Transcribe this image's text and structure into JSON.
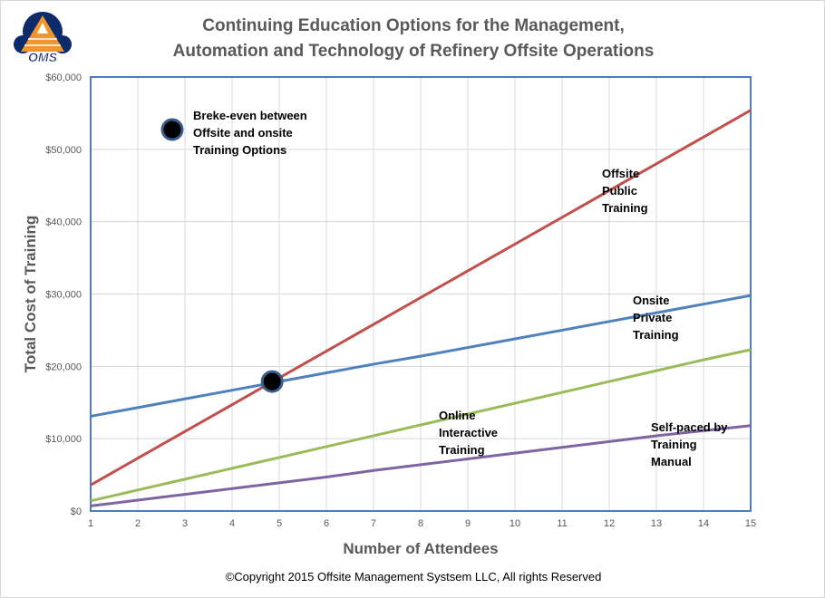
{
  "logo": {
    "text": "OMS"
  },
  "chart_data": {
    "type": "line",
    "title": "Continuing Education Options for the Management, Automation and Technology of Refinery Offsite Operations",
    "title_lines": [
      "Continuing Education Options for the Management,",
      "Automation and Technology of Refinery Offsite Operations"
    ],
    "xlabel": "Number of Attendees",
    "ylabel": "Total Cost of Training",
    "x": [
      1,
      2,
      3,
      4,
      5,
      6,
      7,
      8,
      9,
      10,
      11,
      12,
      13,
      14,
      15
    ],
    "xlim": [
      1,
      15
    ],
    "ylim": [
      0,
      60000
    ],
    "yticks": [
      0,
      10000,
      20000,
      30000,
      40000,
      50000,
      60000
    ],
    "ytick_labels": [
      "$0",
      "$10,000",
      "$20,000",
      "$30,000",
      "$40,000",
      "$50,000",
      "$60,000"
    ],
    "grid": true,
    "series": [
      {
        "name": "Offsite Public Training",
        "label_lines": [
          "Offsite",
          "Public",
          "Training"
        ],
        "color": "#c0504d",
        "values": [
          3600,
          7300,
          11000,
          14700,
          18400,
          22100,
          25800,
          29500,
          33200,
          36900,
          40600,
          44300,
          48000,
          51700,
          55400
        ]
      },
      {
        "name": "Onsite Private Training",
        "label_lines": [
          "Onsite",
          "Private",
          "Training"
        ],
        "color": "#4f81bd",
        "values": [
          13100,
          14300,
          15500,
          16700,
          17900,
          19100,
          20300,
          21400,
          22600,
          23800,
          25000,
          26200,
          27400,
          28600,
          29800
        ]
      },
      {
        "name": "Online Interactive Training",
        "label_lines": [
          "Online",
          "Interactive",
          "Training"
        ],
        "color": "#9bbb59",
        "values": [
          1400,
          2900,
          4400,
          5900,
          7400,
          8900,
          10400,
          11900,
          13400,
          14900,
          16400,
          17900,
          19400,
          20900,
          22300
        ]
      },
      {
        "name": "Self-paced by Training Manual",
        "label_lines": [
          "Self-paced by",
          "Training",
          "Manual"
        ],
        "color": "#8064a2",
        "values": [
          700,
          1500,
          2300,
          3100,
          3900,
          4700,
          5600,
          6400,
          7200,
          8000,
          8800,
          9600,
          10400,
          11100,
          11800
        ]
      }
    ],
    "annotation": {
      "label_lines": [
        "Breke-even between",
        "Offsite and onsite",
        "Training Options"
      ],
      "point": {
        "x": 4.85,
        "y": 17900
      }
    }
  },
  "copyright": "©Copyright 2015  Offsite Management Systsem LLC, All rights Reserved"
}
